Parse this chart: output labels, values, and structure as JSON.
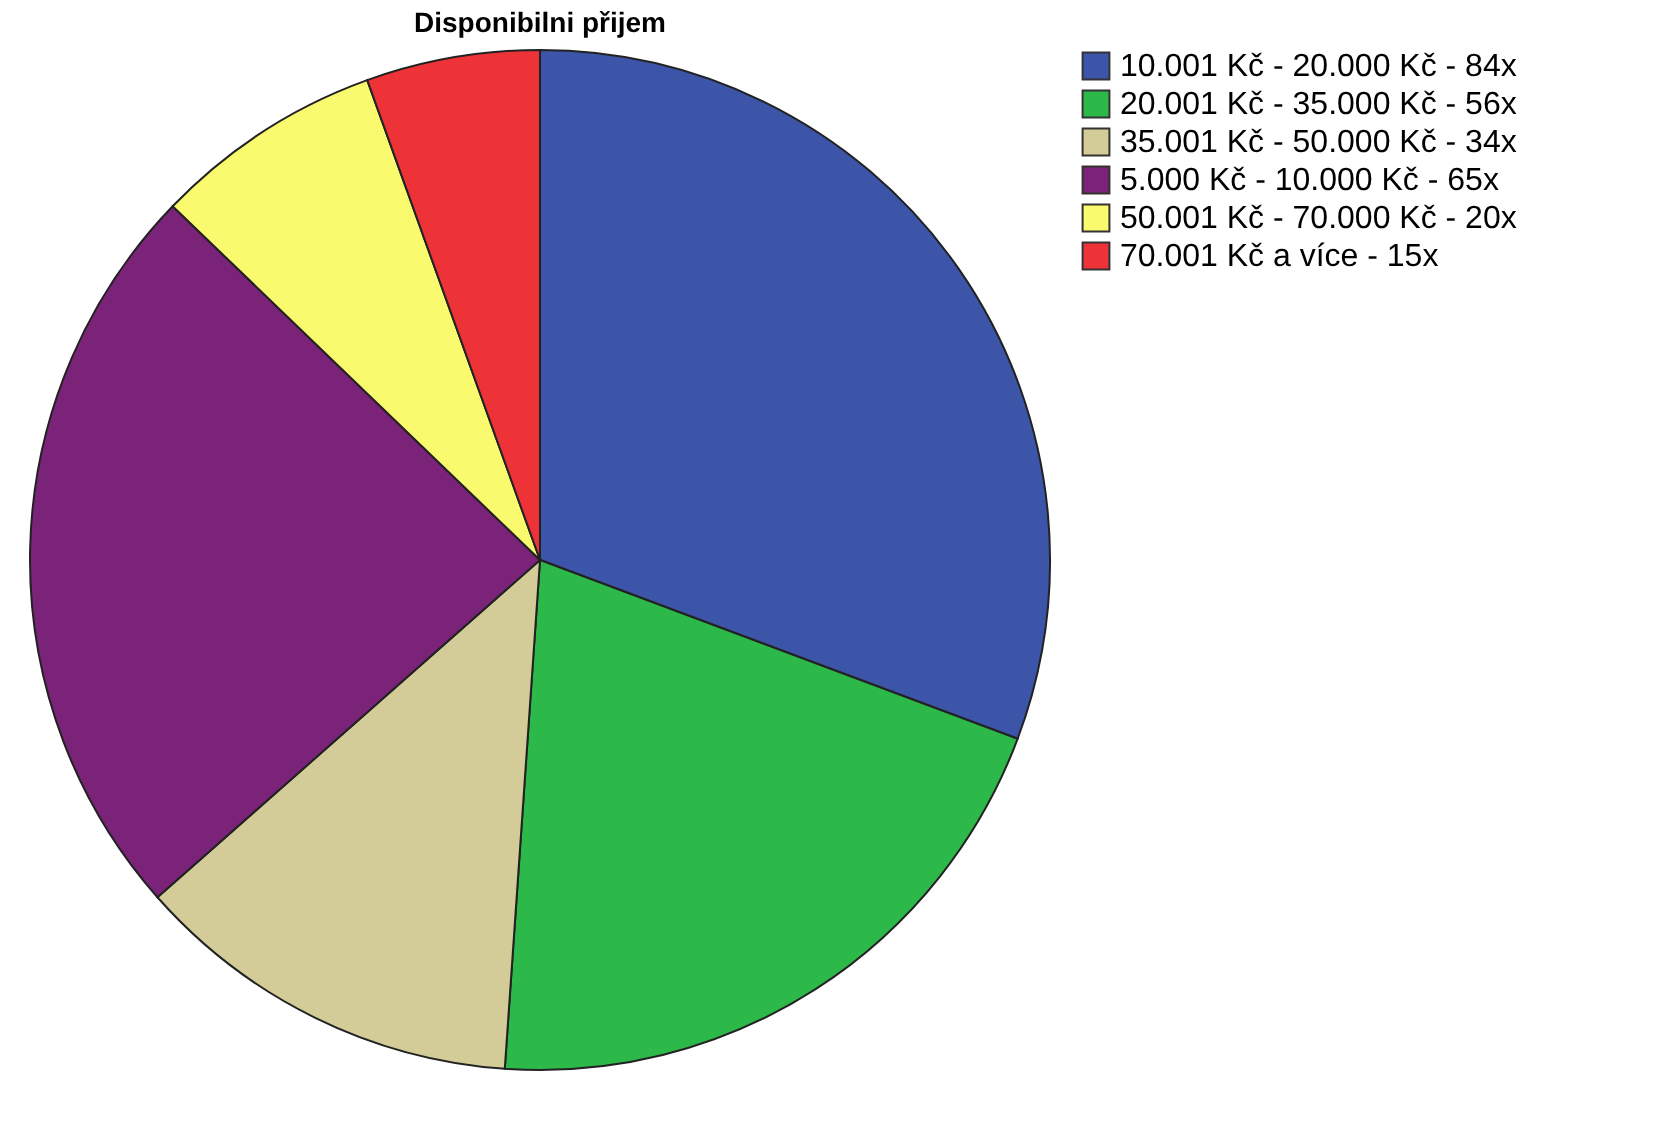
{
  "chart_data": {
    "type": "pie",
    "title": "Disponibilni přijem",
    "categories": [
      "10.001 Kč - 20.000 Kč - 84x",
      "20.001 Kč - 35.000 Kč - 56x",
      "35.001 Kč - 50.000 Kč - 34x",
      "5.000 Kč - 10.000 Kč - 65x",
      "50.001 Kč - 70.000 Kč - 20x",
      "70.001 Kč a více - 15x"
    ],
    "values": [
      30.7,
      20.4,
      12.4,
      23.7,
      7.3,
      5.5
    ],
    "colors": [
      "#3c55a8",
      "#2db84a",
      "#d4cc98",
      "#7a2378",
      "#fafa6e",
      "#ee3338"
    ],
    "legend": "top right"
  }
}
